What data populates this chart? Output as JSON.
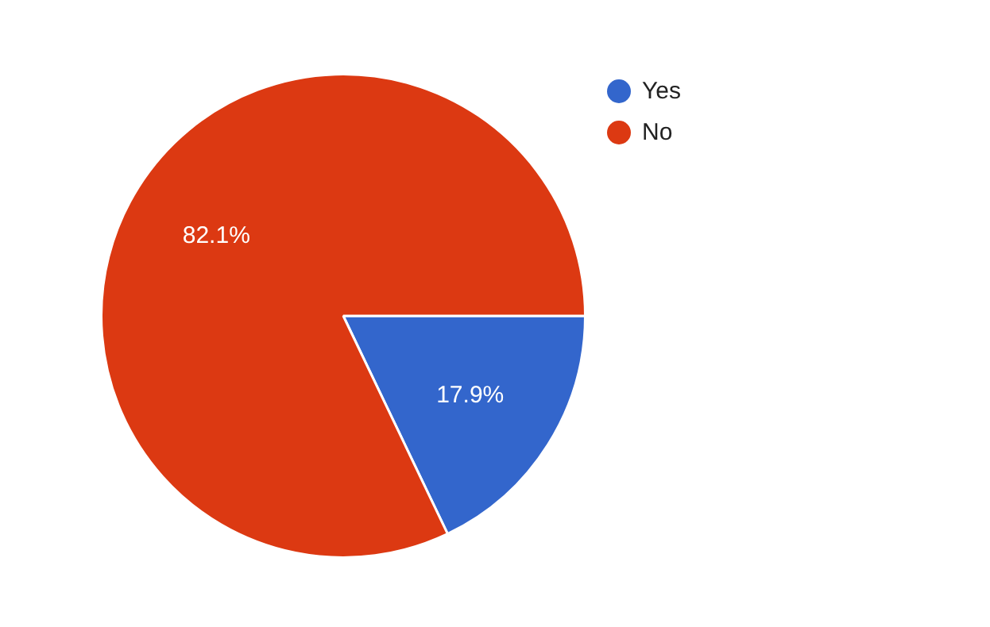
{
  "chart_data": {
    "type": "pie",
    "categories": [
      "Yes",
      "No"
    ],
    "values": [
      17.9,
      82.1
    ],
    "colors": [
      "#3366cc",
      "#dc3912"
    ],
    "value_labels": [
      "17.9%",
      "82.1%"
    ],
    "legend": "top right"
  }
}
